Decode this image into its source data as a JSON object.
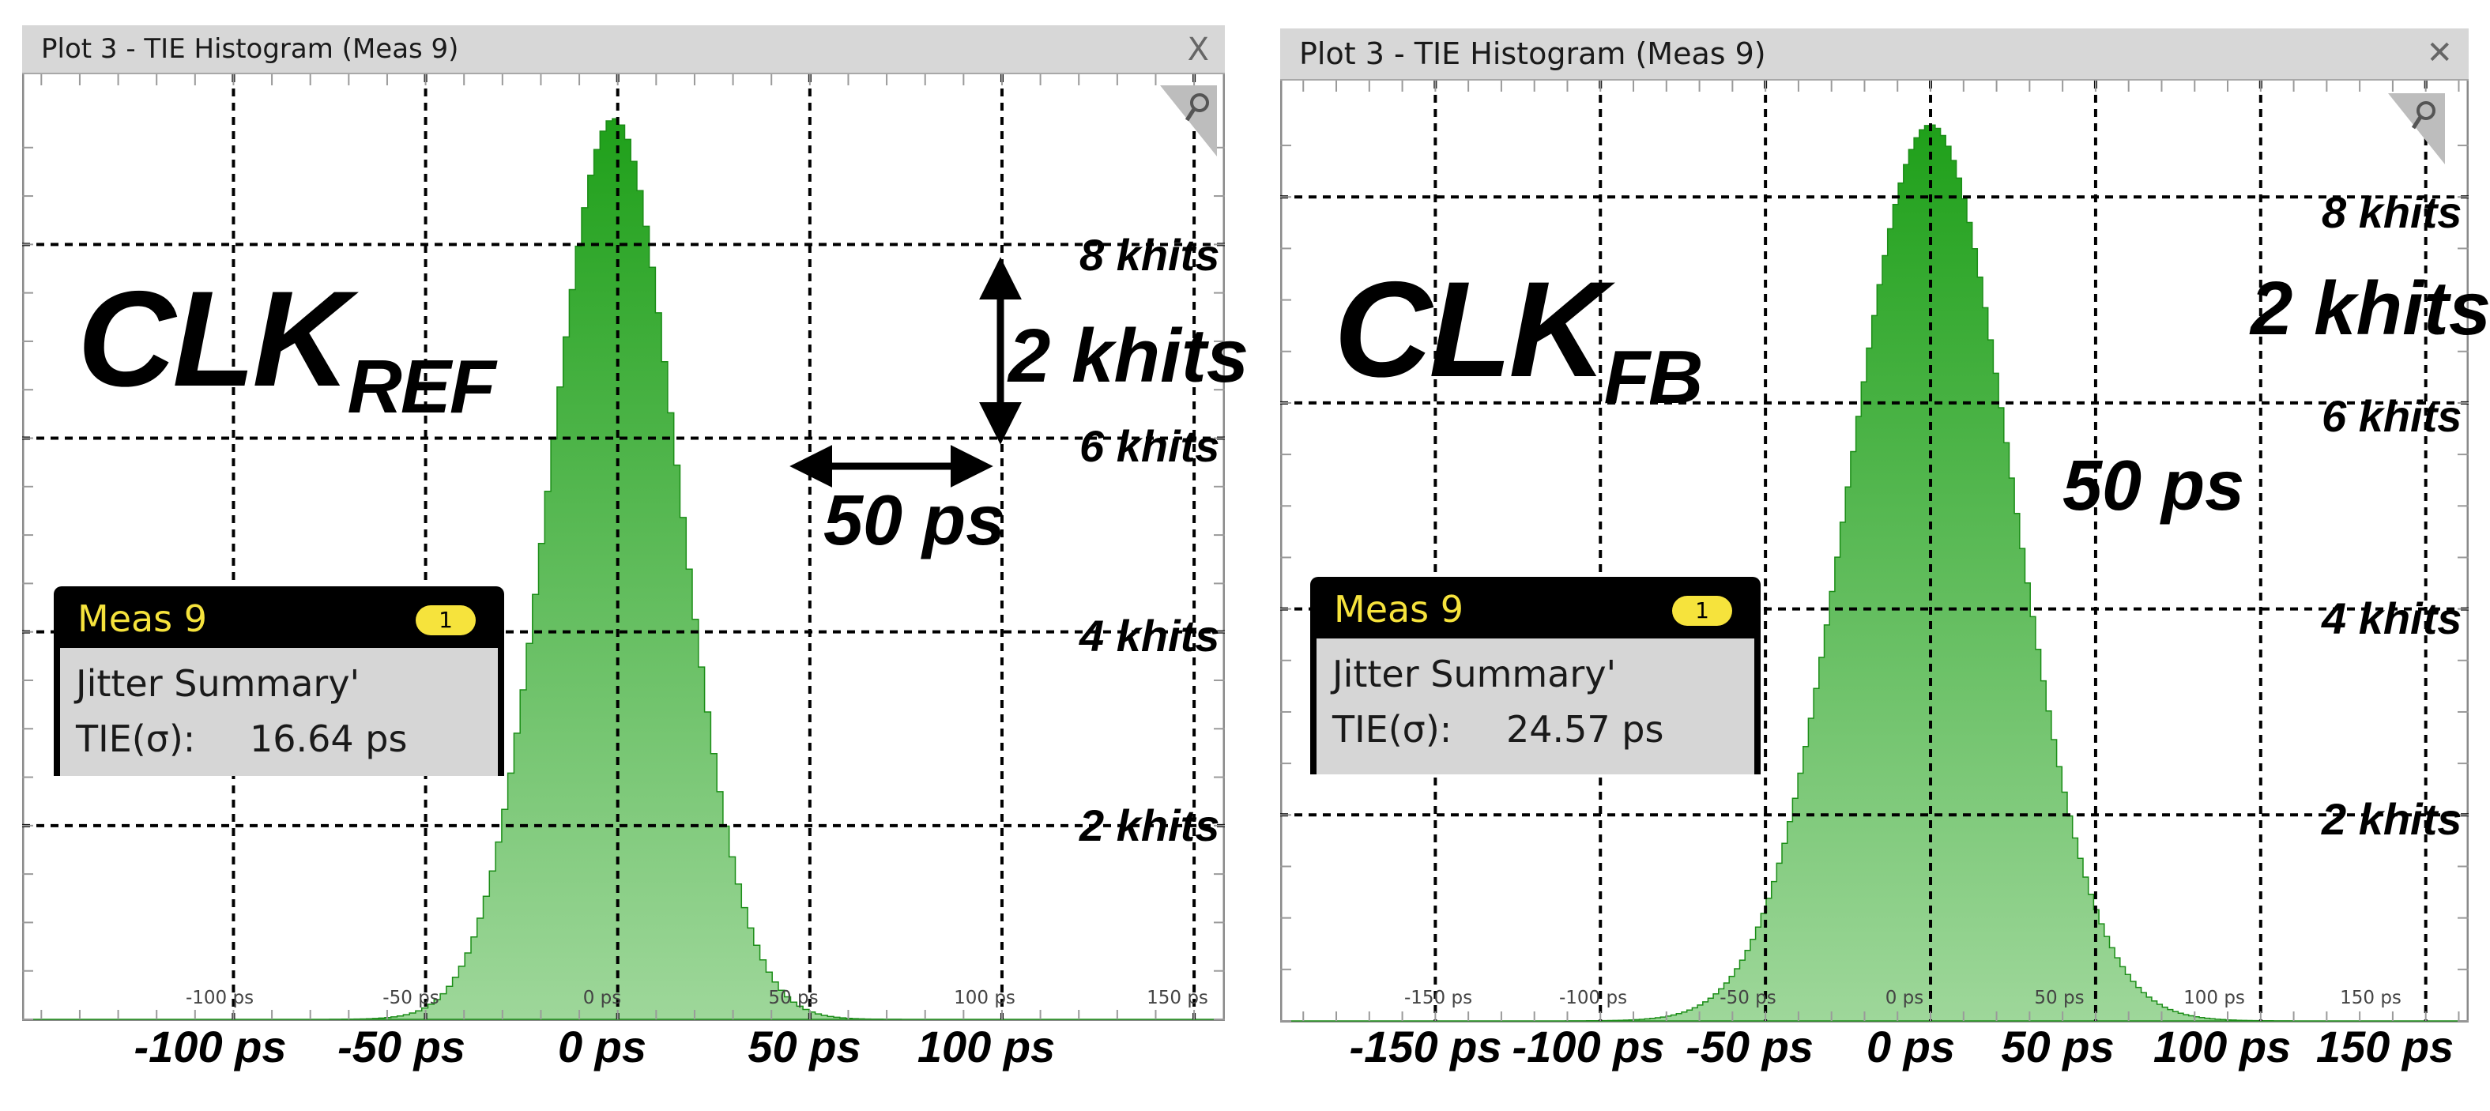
{
  "panels": [
    {
      "window_title": "Plot 3 - TIE Histogram (Meas 9)",
      "close_glyph": "X",
      "signal_main": "CLK",
      "signal_sub": "REF",
      "meas": {
        "title": "Meas 9",
        "badge": "1",
        "line1": "Jitter Summary'",
        "tie_label": "TIE(σ):",
        "tie_value": "16.64 ps"
      },
      "y_labels": [
        "8 khits",
        "6 khits",
        "4 khits",
        "2 khits"
      ],
      "vert_annot": "2 khits",
      "horiz_annot": "50 ps",
      "x_labels": [
        "-100 ps",
        "-50 ps",
        "0 ps",
        "50 ps",
        "100 ps"
      ],
      "inner_ticks": [
        "-100 ps",
        "-50 ps",
        "0 ps",
        "50 ps",
        "100 ps",
        "150 ps"
      ]
    },
    {
      "window_title": "Plot 3 - TIE Histogram (Meas 9)",
      "close_glyph": "✕",
      "signal_main": "CLK",
      "signal_sub": "FB",
      "meas": {
        "title": "Meas 9",
        "badge": "1",
        "line1": "Jitter Summary'",
        "tie_label": "TIE(σ):",
        "tie_value": "24.57 ps"
      },
      "y_labels": [
        "8 khits",
        "6 khits",
        "4 khits",
        "2 khits"
      ],
      "vert_annot": "2 khits",
      "horiz_annot": "50 ps",
      "x_labels": [
        "-150 ps",
        "-100 ps",
        "-50 ps",
        "0 ps",
        "50 ps",
        "100 ps",
        "150 ps"
      ],
      "inner_ticks": [
        "-150 ps",
        "-100 ps",
        "-50 ps",
        "0 ps",
        "50 ps",
        "100 ps",
        "150 ps"
      ]
    }
  ],
  "colors": {
    "histogram_top": "#1fa01a",
    "histogram_bottom": "#9ed79a",
    "titlebar": "#d7d7d7",
    "meas_accent": "#f6e33c"
  },
  "chart_data": [
    {
      "type": "area",
      "title": "Plot 3 - TIE Histogram (Meas 9)",
      "xlabel": "",
      "ylabel": "",
      "x_unit": "ps",
      "y_unit": "khits",
      "xlim": [
        -155,
        158
      ],
      "ylim": [
        0,
        9.3
      ],
      "x_ticks": [
        -100,
        -50,
        0,
        50,
        100
      ],
      "y_ticks": [
        2,
        4,
        6,
        8
      ],
      "grid": true,
      "series": [
        {
          "mean_ps": -1,
          "sigma_ps": 16.64,
          "peak_khits": 9.3
        }
      ]
    },
    {
      "type": "area",
      "title": "Plot 3 - TIE Histogram (Meas 9)",
      "xlabel": "",
      "ylabel": "",
      "x_unit": "ps",
      "y_unit": "khits",
      "xlim": [
        -197,
        163
      ],
      "ylim": [
        0,
        8.7
      ],
      "x_ticks": [
        -150,
        -100,
        -50,
        0,
        50,
        100,
        150
      ],
      "y_ticks": [
        2,
        4,
        6,
        8
      ],
      "grid": true,
      "series": [
        {
          "mean_ps": 0,
          "sigma_ps": 24.57,
          "peak_khits": 8.7
        }
      ]
    }
  ]
}
